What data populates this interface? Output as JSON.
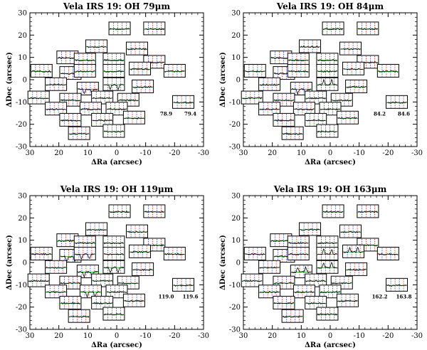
{
  "chart_data": [
    {
      "type": "line",
      "title": "Vela IRS 19: OH 79μm",
      "xlabel": "ΔRa (arcsec)",
      "ylabel": "ΔDec (arcsec)",
      "xlim": [
        30,
        -30
      ],
      "ylim": [
        -30,
        30
      ],
      "xticks": [
        30,
        20,
        10,
        0,
        -10,
        -20,
        -30
      ],
      "yticks": [
        -30,
        -20,
        -10,
        0,
        10,
        20,
        30
      ],
      "line_markers": [
        "78.9",
        "79.4"
      ],
      "strong_spaxels": [
        {
          "ra": 10,
          "dec": -4,
          "kind": "absorption"
        },
        {
          "ra": 1,
          "dec": -2,
          "kind": "absorption"
        }
      ]
    },
    {
      "type": "line",
      "title": "Vela IRS 19: OH 84μm",
      "xlabel": "ΔRa (arcsec)",
      "ylabel": "ΔDec (arcsec)",
      "xlim": [
        30,
        -30
      ],
      "ylim": [
        -30,
        30
      ],
      "xticks": [
        30,
        20,
        10,
        0,
        -10,
        -20,
        -30
      ],
      "yticks": [
        -30,
        -20,
        -10,
        0,
        10,
        20,
        30
      ],
      "line_markers": [
        "84.2",
        "84.6"
      ],
      "strong_spaxels": [
        {
          "ra": 10,
          "dec": -4,
          "kind": "absorption"
        },
        {
          "ra": 1,
          "dec": -2,
          "kind": "emission"
        }
      ]
    },
    {
      "type": "line",
      "title": "Vela IRS 19: OH 119μm",
      "xlabel": "ΔRa (arcsec)",
      "ylabel": "ΔDec (arcsec)",
      "xlim": [
        30,
        -30
      ],
      "ylim": [
        -30,
        30
      ],
      "xticks": [
        30,
        20,
        10,
        0,
        -10,
        -20,
        -30
      ],
      "yticks": [
        -30,
        -20,
        -10,
        0,
        10,
        20,
        30
      ],
      "line_markers": [
        "119.0",
        "119.6"
      ],
      "strong_spaxels": [
        {
          "ra": 16,
          "dec": 3,
          "kind": "absorption"
        },
        {
          "ra": 11,
          "dec": 4,
          "kind": "absorption"
        },
        {
          "ra": 10,
          "dec": -4,
          "kind": "absorption"
        },
        {
          "ra": 1,
          "dec": -2,
          "kind": "absorption"
        },
        {
          "ra": 9,
          "dec": -13,
          "kind": "absorption"
        }
      ]
    },
    {
      "type": "line",
      "title": "Vela IRS 19: OH 163μm",
      "xlabel": "ΔRa (arcsec)",
      "ylabel": "ΔDec (arcsec)",
      "xlim": [
        30,
        -30
      ],
      "ylim": [
        -30,
        30
      ],
      "xticks": [
        30,
        20,
        10,
        0,
        -10,
        -20,
        -30
      ],
      "yticks": [
        -30,
        -20,
        -10,
        0,
        10,
        20,
        30
      ],
      "line_markers": [
        "162.2",
        "163.8"
      ],
      "strong_spaxels": [
        {
          "ra": 1,
          "dec": 4,
          "kind": "emission"
        },
        {
          "ra": 10,
          "dec": -4,
          "kind": "emission"
        },
        {
          "ra": 1,
          "dec": -2,
          "kind": "emission"
        },
        {
          "ra": -8,
          "dec": 5,
          "kind": "emission"
        }
      ]
    }
  ],
  "spaxels": [
    {
      "ra": -1,
      "dec": 23
    },
    {
      "ra": -13,
      "dec": 23
    },
    {
      "ra": 7,
      "dec": 15
    },
    {
      "ra": -7,
      "dec": 14
    },
    {
      "ra": 17,
      "dec": 10
    },
    {
      "ra": 11,
      "dec": 9
    },
    {
      "ra": 1,
      "dec": 9
    },
    {
      "ra": -13,
      "dec": 8
    },
    {
      "ra": 26,
      "dec": 4
    },
    {
      "ra": 16,
      "dec": 3
    },
    {
      "ra": 11,
      "dec": 4
    },
    {
      "ra": 1,
      "dec": 4
    },
    {
      "ra": -8,
      "dec": 5
    },
    {
      "ra": -20,
      "dec": 4
    },
    {
      "ra": 21,
      "dec": -2
    },
    {
      "ra": 10,
      "dec": -4
    },
    {
      "ra": 1,
      "dec": -2
    },
    {
      "ra": -9,
      "dec": -3
    },
    {
      "ra": -23,
      "dec": -10
    },
    {
      "ra": 27,
      "dec": -8
    },
    {
      "ra": 16,
      "dec": -9
    },
    {
      "ra": 5,
      "dec": -8
    },
    {
      "ra": -4,
      "dec": -9
    },
    {
      "ra": 21,
      "dec": -13
    },
    {
      "ra": 9,
      "dec": -13
    },
    {
      "ra": 0,
      "dec": -13
    },
    {
      "ra": 16,
      "dec": -18
    },
    {
      "ra": 5,
      "dec": -18
    },
    {
      "ra": -6,
      "dec": -17
    },
    {
      "ra": 13,
      "dec": -24
    },
    {
      "ra": 1,
      "dec": -23
    }
  ]
}
